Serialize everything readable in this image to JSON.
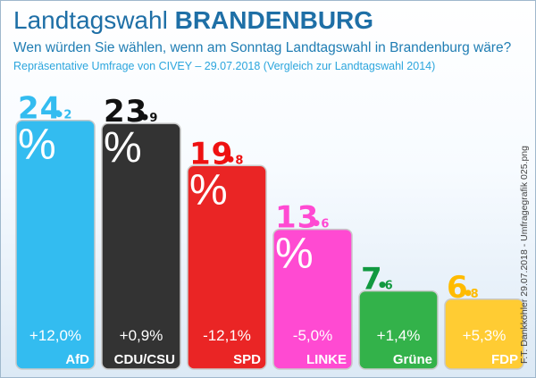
{
  "header": {
    "title_prefix": "Landtagswahl",
    "title_main": "BRANDENBURG",
    "subtitle": "Wen würden Sie wählen, wenn am Sonntag Landtagswahl in Brandenburg wäre?",
    "source": "Repräsentative Umfrage von CIVEY – 29.07.2018 (Vergleich zur Landtagswahl 2014)"
  },
  "credit": "F.T. Dankköhler 29.07.2018 - Umfragegrafik 025.png",
  "chart_data": {
    "type": "bar",
    "title": "Landtagswahl BRANDENBURG",
    "categories": [
      "AfD",
      "CDU/CSU",
      "SPD",
      "LINKE",
      "Grüne",
      "FDP"
    ],
    "values": [
      24.2,
      23.9,
      19.8,
      13.6,
      7.6,
      6.8
    ],
    "value_labels": [
      {
        "int": "24",
        "dec": "2"
      },
      {
        "int": "23",
        "dec": "9"
      },
      {
        "int": "19",
        "dec": "8"
      },
      {
        "int": "13",
        "dec": "6"
      },
      {
        "int": "7",
        "dec": "6"
      },
      {
        "int": "6",
        "dec": "8"
      }
    ],
    "unit": "%",
    "changes": [
      "+12,0%",
      "+0,9%",
      "-12,1%",
      "-5,0%",
      "+1,4%",
      "+5,3%"
    ],
    "colors": [
      "#33bcf0",
      "#333333",
      "#ea2525",
      "#ff4ad2",
      "#33b24a",
      "#ffcc33"
    ],
    "label_colors": [
      "#33bcf0",
      "#111111",
      "#ee1111",
      "#ff4ad2",
      "#119940",
      "#ffbb00"
    ],
    "show_percent_sign": [
      true,
      true,
      true,
      true,
      false,
      false
    ],
    "ylim": [
      0,
      25
    ],
    "grid": false,
    "legend": "none"
  }
}
